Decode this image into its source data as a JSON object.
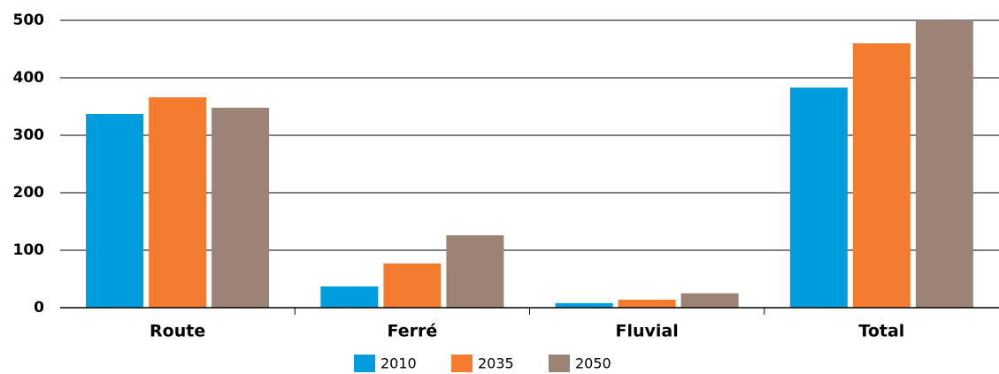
{
  "chart_data": {
    "type": "bar",
    "categories": [
      "Route",
      "Ferré",
      "Fluvial",
      "Total"
    ],
    "series": [
      {
        "name": "2010",
        "color": "#009ddc",
        "values": [
          337,
          37,
          8,
          383
        ]
      },
      {
        "name": "2035",
        "color": "#f47c30",
        "values": [
          366,
          77,
          14,
          460
        ]
      },
      {
        "name": "2050",
        "color": "#9b8475",
        "values": [
          348,
          126,
          25,
          500
        ]
      }
    ],
    "ylim": [
      0,
      500
    ],
    "yticks": [
      0,
      100,
      200,
      300,
      400,
      500
    ],
    "grid": true,
    "legend": "bottom"
  }
}
